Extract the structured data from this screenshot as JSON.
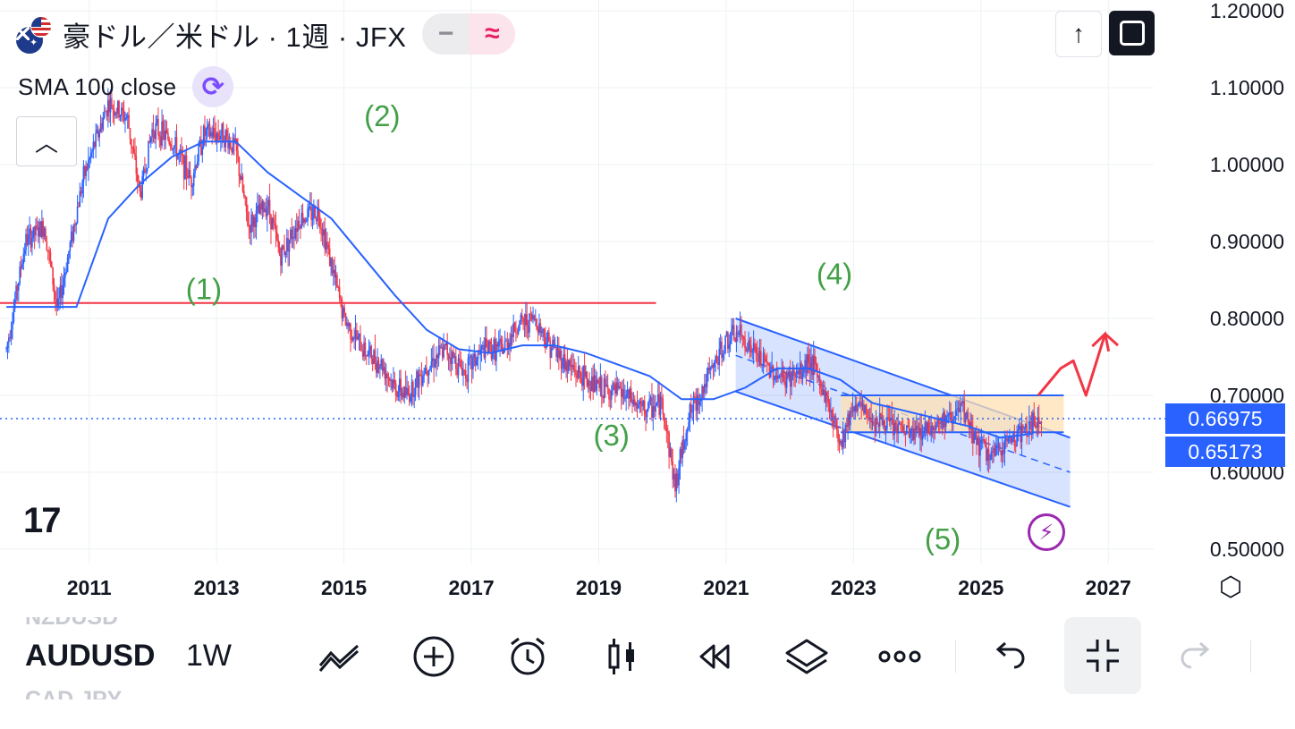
{
  "header": {
    "title": "豪ドル／米ドル · 1週 · JFX",
    "pill_left": "−",
    "pill_right": "≈"
  },
  "indicator": {
    "label": "SMA 100 close"
  },
  "price_axis": {
    "labels": [
      "1.20000",
      "1.10000",
      "1.00000",
      "0.90000",
      "0.80000",
      "0.70000",
      "0.60000",
      "0.50000"
    ],
    "current_price": "0.66975",
    "second_price": "0.65173"
  },
  "time_axis": {
    "labels": [
      "2011",
      "2013",
      "2015",
      "2017",
      "2019",
      "2021",
      "2023",
      "2025",
      "2027"
    ]
  },
  "annotations": {
    "waves": [
      "(1)",
      "(2)",
      "(3)",
      "(4)",
      "(5)"
    ]
  },
  "logo": {
    "text": "17"
  },
  "toolbar": {
    "symbol_prev": "NZDUSD",
    "symbol": "AUDUSD",
    "symbol_next": "CAD JPY",
    "timeframe": "1W"
  },
  "icons": {
    "collapse": "chevron-up-icon",
    "up": "arrow-up-icon",
    "fullscreen": "fullscreen-icon",
    "indicator": "refresh-icon",
    "lightning": "lightning-icon",
    "settings": "hexagon-settings-icon",
    "tools": [
      "drawing-tools-icon",
      "add-icon",
      "alarm-icon",
      "candlestick-icon",
      "replay-icon",
      "layers-icon",
      "more-icon",
      "undo-icon",
      "exit-fullscreen-icon",
      "redo-icon"
    ]
  },
  "colors": {
    "up_candle": "#2962ff",
    "down_candle": "#f23645",
    "sma": "#2962ff",
    "hline": "#f23645",
    "wave": "#43a047",
    "channel": "#2962ff",
    "range_box": "#ffe0b2"
  },
  "chart_data": {
    "type": "candlestick",
    "title": "豪ドル／米ドル · 1週 · JFX",
    "ylim": [
      0.5,
      1.2
    ],
    "xlim": [
      2009.6,
      2027.6
    ],
    "close_path": [
      [
        2009.7,
        0.76
      ],
      [
        2010.0,
        0.9
      ],
      [
        2010.3,
        0.92
      ],
      [
        2010.5,
        0.81
      ],
      [
        2010.9,
        0.98
      ],
      [
        2011.3,
        1.08
      ],
      [
        2011.6,
        1.06
      ],
      [
        2011.8,
        0.96
      ],
      [
        2012.0,
        1.05
      ],
      [
        2012.3,
        1.03
      ],
      [
        2012.6,
        0.98
      ],
      [
        2012.8,
        1.04
      ],
      [
        2013.1,
        1.04
      ],
      [
        2013.3,
        1.02
      ],
      [
        2013.5,
        0.92
      ],
      [
        2013.8,
        0.95
      ],
      [
        2014.0,
        0.88
      ],
      [
        2014.3,
        0.93
      ],
      [
        2014.6,
        0.94
      ],
      [
        2014.8,
        0.87
      ],
      [
        2015.0,
        0.8
      ],
      [
        2015.3,
        0.76
      ],
      [
        2015.6,
        0.74
      ],
      [
        2015.8,
        0.71
      ],
      [
        2016.0,
        0.7
      ],
      [
        2016.3,
        0.74
      ],
      [
        2016.6,
        0.76
      ],
      [
        2016.9,
        0.73
      ],
      [
        2017.2,
        0.76
      ],
      [
        2017.5,
        0.76
      ],
      [
        2017.7,
        0.79
      ],
      [
        2018.0,
        0.8
      ],
      [
        2018.2,
        0.77
      ],
      [
        2018.5,
        0.74
      ],
      [
        2018.8,
        0.72
      ],
      [
        2019.0,
        0.71
      ],
      [
        2019.4,
        0.7
      ],
      [
        2019.7,
        0.68
      ],
      [
        2020.0,
        0.69
      ],
      [
        2020.2,
        0.58
      ],
      [
        2020.4,
        0.67
      ],
      [
        2020.7,
        0.72
      ],
      [
        2021.0,
        0.77
      ],
      [
        2021.2,
        0.78
      ],
      [
        2021.6,
        0.74
      ],
      [
        2021.9,
        0.72
      ],
      [
        2022.2,
        0.73
      ],
      [
        2022.3,
        0.75
      ],
      [
        2022.6,
        0.69
      ],
      [
        2022.8,
        0.64
      ],
      [
        2023.0,
        0.69
      ],
      [
        2023.3,
        0.67
      ],
      [
        2023.6,
        0.66
      ],
      [
        2023.9,
        0.65
      ],
      [
        2024.2,
        0.66
      ],
      [
        2024.5,
        0.67
      ],
      [
        2024.7,
        0.68
      ],
      [
        2025.0,
        0.63
      ],
      [
        2025.2,
        0.62
      ],
      [
        2025.4,
        0.64
      ],
      [
        2025.7,
        0.655
      ],
      [
        2025.95,
        0.6697
      ]
    ],
    "sma_path": [
      [
        2009.7,
        0.815
      ],
      [
        2010.3,
        0.815
      ],
      [
        2010.8,
        0.815
      ],
      [
        2011.3,
        0.93
      ],
      [
        2011.8,
        0.975
      ],
      [
        2012.3,
        1.01
      ],
      [
        2012.8,
        1.03
      ],
      [
        2013.3,
        1.03
      ],
      [
        2013.8,
        0.99
      ],
      [
        2014.3,
        0.96
      ],
      [
        2014.8,
        0.93
      ],
      [
        2015.3,
        0.88
      ],
      [
        2015.8,
        0.83
      ],
      [
        2016.3,
        0.785
      ],
      [
        2016.8,
        0.76
      ],
      [
        2017.3,
        0.755
      ],
      [
        2017.8,
        0.765
      ],
      [
        2018.3,
        0.765
      ],
      [
        2018.8,
        0.755
      ],
      [
        2019.3,
        0.74
      ],
      [
        2019.8,
        0.725
      ],
      [
        2020.3,
        0.695
      ],
      [
        2020.8,
        0.695
      ],
      [
        2021.3,
        0.71
      ],
      [
        2021.8,
        0.735
      ],
      [
        2022.3,
        0.735
      ],
      [
        2022.8,
        0.72
      ],
      [
        2023.3,
        0.69
      ],
      [
        2023.8,
        0.68
      ],
      [
        2024.3,
        0.67
      ],
      [
        2024.8,
        0.66
      ],
      [
        2025.3,
        0.645
      ],
      [
        2025.8,
        0.65
      ]
    ],
    "hline": {
      "y": 0.82,
      "x_start": 2009.6,
      "x_end": 2019.9
    },
    "channel": {
      "upper": [
        [
          2021.15,
          0.8
        ],
        [
          2026.4,
          0.645
        ]
      ],
      "lower": [
        [
          2021.15,
          0.705
        ],
        [
          2026.4,
          0.555
        ]
      ],
      "mid": [
        [
          2021.15,
          0.752
        ],
        [
          2026.4,
          0.6
        ]
      ]
    },
    "range_box": {
      "x": [
        2022.8,
        2026.3
      ],
      "y": [
        0.652,
        0.7
      ]
    },
    "dotted_price": 0.66975,
    "waves": [
      {
        "label": "(1)",
        "x": 2012.8,
        "y": 0.825
      },
      {
        "label": "(2)",
        "x": 2015.6,
        "y": 1.05
      },
      {
        "label": "(3)",
        "x": 2019.2,
        "y": 0.635
      },
      {
        "label": "(4)",
        "x": 2022.7,
        "y": 0.845
      },
      {
        "label": "(5)",
        "x": 2024.4,
        "y": 0.5
      }
    ],
    "projection": [
      [
        2025.9,
        0.7
      ],
      [
        2026.25,
        0.735
      ],
      [
        2026.45,
        0.745
      ],
      [
        2026.65,
        0.7
      ],
      [
        2026.95,
        0.78
      ],
      [
        2027.15,
        0.765
      ]
    ]
  }
}
